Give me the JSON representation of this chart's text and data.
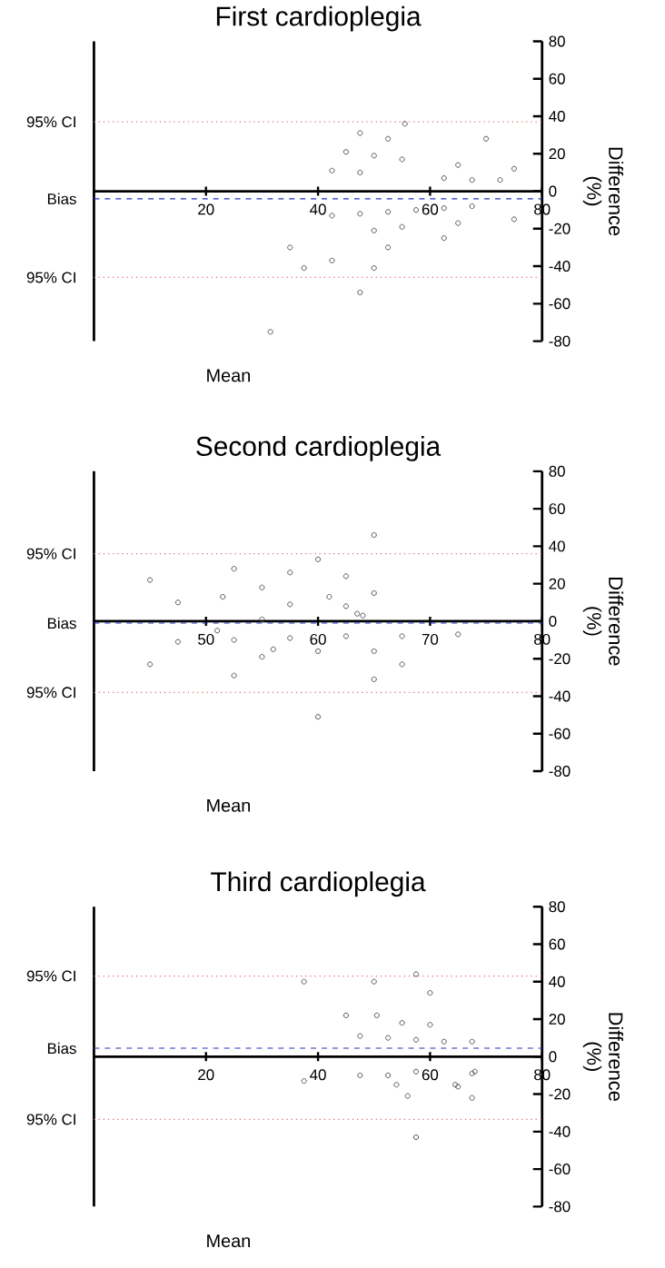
{
  "chart_data": [
    {
      "type": "scatter",
      "title": "First cardioplegia",
      "xlabel": "Mean",
      "ylabel": "Difference (%)",
      "color": "#555555",
      "marker": "circle",
      "x": [
        47.5,
        55.5,
        52.5,
        70,
        45,
        50,
        55,
        42.5,
        47.5,
        65,
        75,
        62.5,
        67.5,
        72.5,
        42.5,
        47.5,
        52.5,
        57.5,
        62.5,
        67.5,
        65,
        75,
        55,
        50,
        62.5,
        35,
        52.5,
        42.5,
        37.5,
        50,
        47.5,
        31.5
      ],
      "values": [
        31,
        36,
        28,
        28,
        21,
        19,
        17,
        11,
        10,
        14,
        12,
        7,
        6,
        6,
        -13,
        -12,
        -11,
        -10,
        -9,
        -8,
        -17,
        -15,
        -19,
        -21,
        -25,
        -30,
        -30,
        -37,
        -41,
        -41,
        -54,
        -75
      ],
      "xlim": [
        0,
        80
      ],
      "xticks": [
        20,
        40,
        60,
        80
      ],
      "ylim": [
        -80,
        80
      ],
      "yticks": [
        -80,
        -60,
        -40,
        -20,
        0,
        20,
        40,
        60,
        80
      ],
      "ref_lines": [
        {
          "axis": "y",
          "value": 37,
          "label": "95% CI",
          "color": "#e06666",
          "line_style": "dotted"
        },
        {
          "axis": "y",
          "value": -4,
          "label": "Bias",
          "color": "#2233bb",
          "line_style": "dashed"
        },
        {
          "axis": "y",
          "value": -46,
          "label": "95% CI",
          "color": "#e06666",
          "line_style": "dotted"
        }
      ]
    },
    {
      "type": "scatter",
      "title": "Second cardioplegia",
      "xlabel": "Mean",
      "ylabel": "Difference (%)",
      "color": "#555555",
      "marker": "circle",
      "x": [
        65,
        60,
        52.5,
        57.5,
        62.5,
        45,
        55,
        51.5,
        61,
        65,
        47.5,
        57.5,
        62.5,
        63.5,
        64,
        55,
        51,
        47.5,
        52.5,
        57.5,
        62.5,
        67.5,
        72.5,
        60,
        56,
        55,
        65,
        45,
        67.5,
        52.5,
        65,
        60
      ],
      "values": [
        46,
        33,
        28,
        26,
        24,
        22,
        18,
        13,
        13,
        15,
        10,
        9,
        8,
        4,
        3,
        1,
        -5,
        -11,
        -10,
        -9,
        -8,
        -8,
        -7,
        -16,
        -15,
        -19,
        -16,
        -23,
        -23,
        -29,
        -31,
        -51
      ],
      "xlim": [
        40,
        80
      ],
      "xticks": [
        50,
        60,
        70,
        80
      ],
      "ylim": [
        -80,
        80
      ],
      "yticks": [
        -80,
        -60,
        -40,
        -20,
        0,
        20,
        40,
        60,
        80
      ],
      "ref_lines": [
        {
          "axis": "y",
          "value": 36,
          "label": "95% CI",
          "color": "#e06666",
          "line_style": "dotted"
        },
        {
          "axis": "y",
          "value": -1,
          "label": "Bias",
          "color": "#2233bb",
          "line_style": "dashed"
        },
        {
          "axis": "y",
          "value": -38,
          "label": "95% CI",
          "color": "#e06666",
          "line_style": "dotted"
        }
      ]
    },
    {
      "type": "scatter",
      "title": "Third cardioplegia",
      "xlabel": "Mean",
      "ylabel": "Difference (%)",
      "color": "#555555",
      "marker": "circle",
      "x": [
        37.5,
        50,
        57.5,
        60,
        45,
        50.5,
        55,
        60,
        47.5,
        52.5,
        57.5,
        62.5,
        67.5,
        37.5,
        47.5,
        52.5,
        57.5,
        68,
        67.5,
        54,
        64.5,
        65,
        56,
        67.5,
        57.5
      ],
      "values": [
        40,
        40,
        44,
        34,
        22,
        22,
        18,
        17,
        11,
        10,
        9,
        8,
        8,
        -13,
        -10,
        -10,
        -8,
        -8,
        -9,
        -15,
        -15,
        -16,
        -21,
        -22,
        -43
      ],
      "xlim": [
        0,
        80
      ],
      "xticks": [
        20,
        40,
        60,
        80
      ],
      "ylim": [
        -80,
        80
      ],
      "yticks": [
        -80,
        -60,
        -40,
        -20,
        0,
        20,
        40,
        60,
        80
      ],
      "ref_lines": [
        {
          "axis": "y",
          "value": 43,
          "label": "95% CI",
          "color": "#e06666",
          "line_style": "dotted"
        },
        {
          "axis": "y",
          "value": 4.5,
          "label": "Bias",
          "color": "#2233bb",
          "line_style": "dashed"
        },
        {
          "axis": "y",
          "value": -33.5,
          "label": "95% CI",
          "color": "#e06666",
          "line_style": "dotted"
        }
      ]
    }
  ]
}
